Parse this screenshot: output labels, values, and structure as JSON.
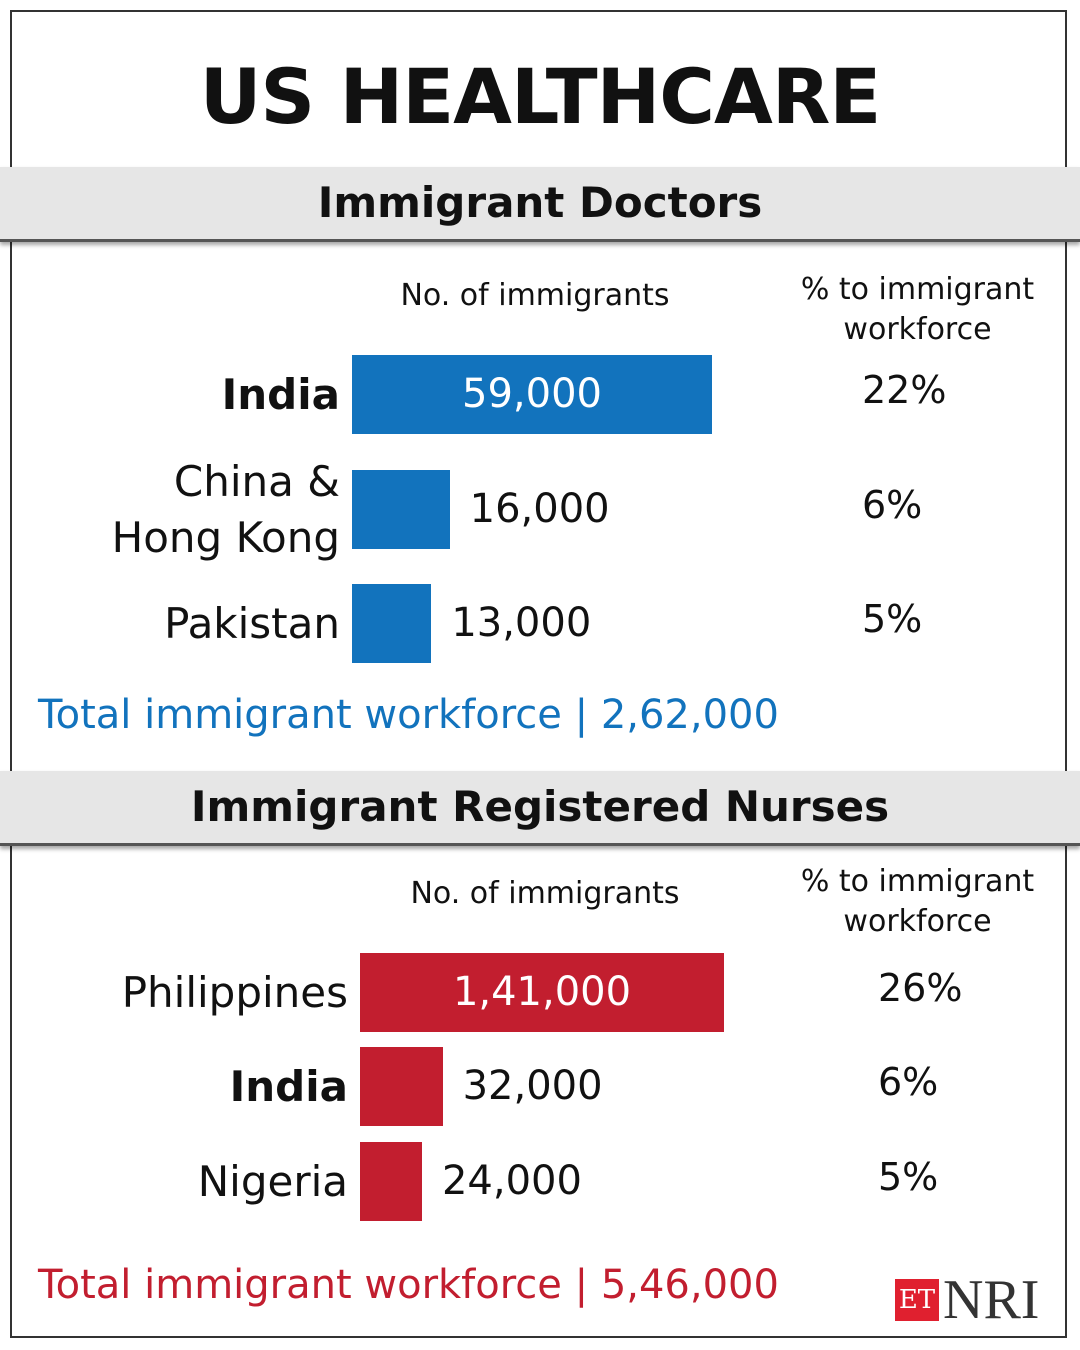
{
  "title": "US HEALTHCARE",
  "colors": {
    "doctors": "#1273bd",
    "nurses": "#c21e2f"
  },
  "chart_data": [
    {
      "type": "bar",
      "title": "Immigrant Doctors",
      "col_header": "No. of immigrants",
      "pct_header": "% to immigrant workforce",
      "categories": [
        "India",
        "China & Hong Kong",
        "Pakistan"
      ],
      "labels": [
        "59,000",
        "16,000",
        "13,000"
      ],
      "values": [
        59000,
        16000,
        13000
      ],
      "pct": [
        "22%",
        "6%",
        "5%"
      ],
      "total_label": "Total immigrant workforce | 2,62,000"
    },
    {
      "type": "bar",
      "title": "Immigrant Registered Nurses",
      "col_header": "No. of immigrants",
      "pct_header": "% to immigrant workforce",
      "categories": [
        "Philippines",
        "India",
        "Nigeria"
      ],
      "labels": [
        "1,41,000",
        "32,000",
        "24,000"
      ],
      "values": [
        141000,
        32000,
        24000
      ],
      "pct": [
        "26%",
        "6%",
        "5%"
      ],
      "total_label": "Total immigrant workforce | 5,46,000"
    }
  ],
  "logo": {
    "et": "ET",
    "nri": "NRI"
  }
}
